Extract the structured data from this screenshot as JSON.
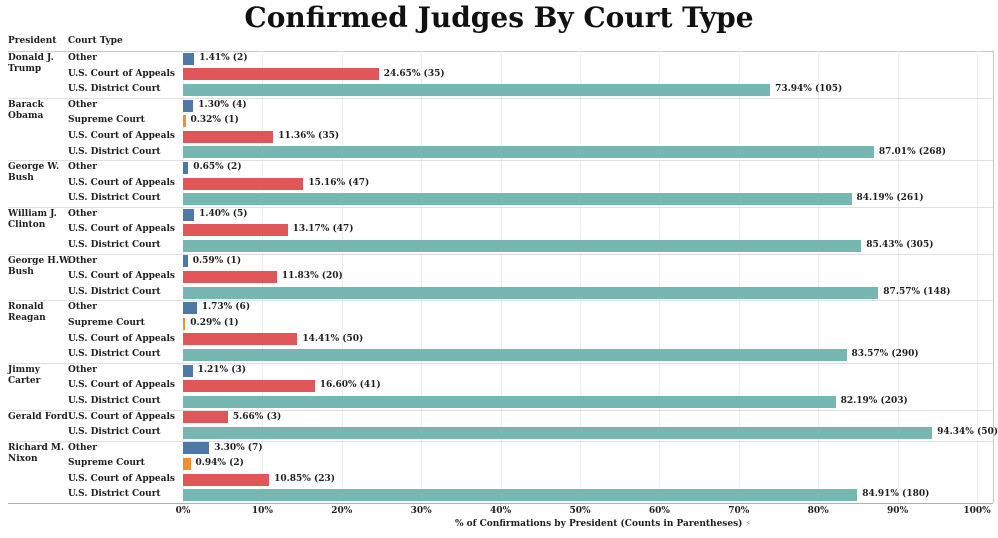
{
  "title": "Confirmed Judges By Court Type",
  "column_headers": {
    "president": "President",
    "court_type": "Court Type"
  },
  "axis": {
    "label": "% of Confirmations by President (Counts in Parentheses)",
    "sort_icon": "⚡",
    "tick_labels": [
      "0%",
      "10%",
      "20%",
      "30%",
      "40%",
      "50%",
      "60%",
      "70%",
      "80%",
      "90%",
      "100%"
    ]
  },
  "chart_data": {
    "type": "bar",
    "orientation": "horizontal",
    "title": "Confirmed Judges By Court Type",
    "xlabel": "% of Confirmations by President (Counts in Parentheses)",
    "xlim": [
      0,
      100
    ],
    "x_tick_labels": [
      "0%",
      "10%",
      "20%",
      "30%",
      "40%",
      "50%",
      "60%",
      "70%",
      "80%",
      "90%",
      "100%"
    ],
    "grid": true,
    "legend_position": "none",
    "colors": {
      "Other": "#4E79A7",
      "Supreme Court": "#F28E2B",
      "U.S. Court of Appeals": "#E15759",
      "U.S. District Court": "#76B7B2"
    },
    "groups": [
      {
        "president": "Donald J.\nTrump",
        "rows": [
          {
            "court": "Other",
            "pct": 1.41,
            "count": 2,
            "label": "1.41% (2)"
          },
          {
            "court": "U.S. Court of Appeals",
            "pct": 24.65,
            "count": 35,
            "label": "24.65% (35)"
          },
          {
            "court": "U.S. District Court",
            "pct": 73.94,
            "count": 105,
            "label": "73.94% (105)"
          }
        ]
      },
      {
        "president": "Barack\nObama",
        "rows": [
          {
            "court": "Other",
            "pct": 1.3,
            "count": 4,
            "label": "1.30% (4)"
          },
          {
            "court": "Supreme Court",
            "pct": 0.32,
            "count": 1,
            "label": "0.32% (1)"
          },
          {
            "court": "U.S. Court of Appeals",
            "pct": 11.36,
            "count": 35,
            "label": "11.36% (35)"
          },
          {
            "court": "U.S. District Court",
            "pct": 87.01,
            "count": 268,
            "label": "87.01% (268)"
          }
        ]
      },
      {
        "president": "George W.\nBush",
        "rows": [
          {
            "court": "Other",
            "pct": 0.65,
            "count": 2,
            "label": "0.65% (2)"
          },
          {
            "court": "U.S. Court of Appeals",
            "pct": 15.16,
            "count": 47,
            "label": "15.16% (47)"
          },
          {
            "court": "U.S. District Court",
            "pct": 84.19,
            "count": 261,
            "label": "84.19% (261)"
          }
        ]
      },
      {
        "president": "William J.\nClinton",
        "rows": [
          {
            "court": "Other",
            "pct": 1.4,
            "count": 5,
            "label": "1.40% (5)"
          },
          {
            "court": "U.S. Court of Appeals",
            "pct": 13.17,
            "count": 47,
            "label": "13.17% (47)"
          },
          {
            "court": "U.S. District Court",
            "pct": 85.43,
            "count": 305,
            "label": "85.43% (305)"
          }
        ]
      },
      {
        "president": "George H.W.\nBush",
        "rows": [
          {
            "court": "Other",
            "pct": 0.59,
            "count": 1,
            "label": "0.59% (1)"
          },
          {
            "court": "U.S. Court of Appeals",
            "pct": 11.83,
            "count": 20,
            "label": "11.83% (20)"
          },
          {
            "court": "U.S. District Court",
            "pct": 87.57,
            "count": 148,
            "label": "87.57% (148)"
          }
        ]
      },
      {
        "president": "Ronald\nReagan",
        "rows": [
          {
            "court": "Other",
            "pct": 1.73,
            "count": 6,
            "label": "1.73% (6)"
          },
          {
            "court": "Supreme Court",
            "pct": 0.29,
            "count": 1,
            "label": "0.29% (1)"
          },
          {
            "court": "U.S. Court of Appeals",
            "pct": 14.41,
            "count": 50,
            "label": "14.41% (50)"
          },
          {
            "court": "U.S. District Court",
            "pct": 83.57,
            "count": 290,
            "label": "83.57% (290)"
          }
        ]
      },
      {
        "president": "Jimmy Carter",
        "rows": [
          {
            "court": "Other",
            "pct": 1.21,
            "count": 3,
            "label": "1.21% (3)"
          },
          {
            "court": "U.S. Court of Appeals",
            "pct": 16.6,
            "count": 41,
            "label": "16.60% (41)"
          },
          {
            "court": "U.S. District Court",
            "pct": 82.19,
            "count": 203,
            "label": "82.19% (203)"
          }
        ]
      },
      {
        "president": "Gerald Ford",
        "rows": [
          {
            "court": "U.S. Court of Appeals",
            "pct": 5.66,
            "count": 3,
            "label": "5.66% (3)"
          },
          {
            "court": "U.S. District Court",
            "pct": 94.34,
            "count": 50,
            "label": "94.34% (50)"
          }
        ]
      },
      {
        "president": "Richard M.\nNixon",
        "rows": [
          {
            "court": "Other",
            "pct": 3.3,
            "count": 7,
            "label": "3.30% (7)"
          },
          {
            "court": "Supreme Court",
            "pct": 0.94,
            "count": 2,
            "label": "0.94% (2)"
          },
          {
            "court": "U.S. Court of Appeals",
            "pct": 10.85,
            "count": 23,
            "label": "10.85% (23)"
          },
          {
            "court": "U.S. District Court",
            "pct": 84.91,
            "count": 180,
            "label": "84.91% (180)"
          }
        ]
      }
    ]
  }
}
